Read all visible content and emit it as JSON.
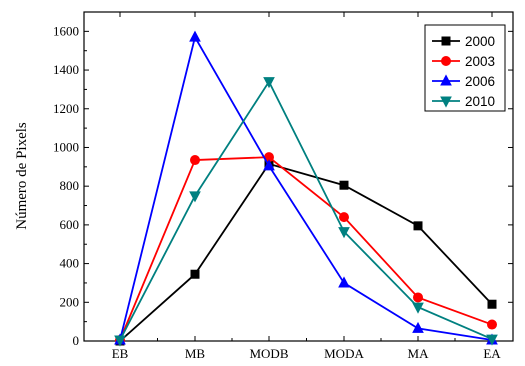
{
  "chart_data": {
    "type": "line",
    "categories": [
      "EB",
      "MB",
      "MODB",
      "MODA",
      "MA",
      "EA"
    ],
    "ylabel": "Número de Pixels",
    "xlabel": "",
    "title": "",
    "ylim": [
      0,
      1700
    ],
    "yticks": [
      0,
      200,
      400,
      600,
      800,
      1000,
      1200,
      1400,
      1600
    ],
    "grid": false,
    "legend_position": "top-right",
    "series": [
      {
        "name": "2000",
        "color": "#000000",
        "marker": "square",
        "values": [
          0,
          345,
          915,
          805,
          595,
          190
        ]
      },
      {
        "name": "2003",
        "color": "#ff0000",
        "marker": "circle",
        "values": [
          5,
          935,
          950,
          640,
          225,
          85
        ]
      },
      {
        "name": "2006",
        "color": "#0000ff",
        "marker": "triangle-up",
        "values": [
          5,
          1570,
          905,
          300,
          65,
          5
        ]
      },
      {
        "name": "2010",
        "color": "#008080",
        "marker": "triangle-down",
        "values": [
          5,
          750,
          1340,
          565,
          175,
          10
        ]
      }
    ]
  }
}
